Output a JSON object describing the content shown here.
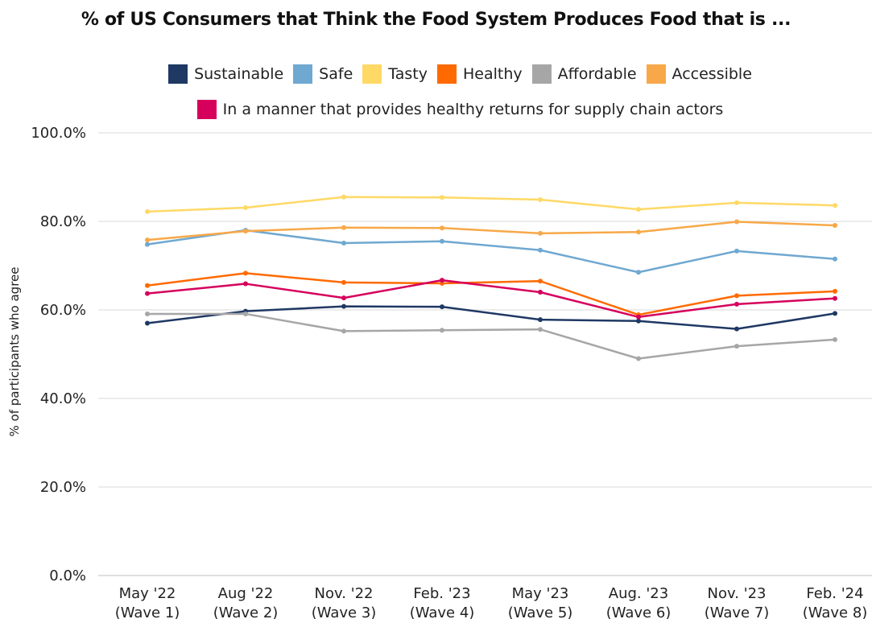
{
  "chart_data": {
    "type": "line",
    "title": "% of US Consumers that Think the Food System Produces Food that is ...",
    "ylabel": "% of participants who agree",
    "xlabel": "",
    "ylim": [
      0,
      100
    ],
    "yticks": [
      "0.0%",
      "20.0%",
      "40.0%",
      "60.0%",
      "80.0%",
      "100.0%"
    ],
    "categories": [
      [
        "May '22",
        "(Wave 1)"
      ],
      [
        "Aug '22",
        "(Wave 2)"
      ],
      [
        "Nov. '22",
        "(Wave 3)"
      ],
      [
        "Feb. '23",
        "(Wave 4)"
      ],
      [
        "May '23",
        "(Wave 5)"
      ],
      [
        "Aug. '23",
        "(Wave 6)"
      ],
      [
        "Nov. '23",
        "(Wave 7)"
      ],
      [
        "Feb. '24",
        "(Wave 8)"
      ]
    ],
    "grid": true,
    "legend_position": "top",
    "series": [
      {
        "name": "Sustainable",
        "color": "#1f3864",
        "values": [
          57.0,
          59.7,
          60.8,
          60.7,
          57.8,
          57.5,
          55.7,
          59.2
        ]
      },
      {
        "name": "Safe",
        "color": "#6fa8d0",
        "values": [
          74.8,
          78.0,
          75.1,
          75.5,
          73.5,
          68.5,
          73.3,
          71.5
        ]
      },
      {
        "name": "Tasty",
        "color": "#ffd966",
        "values": [
          82.2,
          83.1,
          85.5,
          85.4,
          84.9,
          82.7,
          84.2,
          83.6
        ]
      },
      {
        "name": "Healthy",
        "color": "#ff6a00",
        "values": [
          65.5,
          68.3,
          66.2,
          66.0,
          66.5,
          58.9,
          63.2,
          64.2
        ]
      },
      {
        "name": "Affordable",
        "color": "#a6a6a6",
        "values": [
          59.1,
          59.1,
          55.2,
          55.4,
          55.6,
          49.0,
          51.8,
          53.3
        ]
      },
      {
        "name": "Accessible",
        "color": "#f8a848",
        "values": [
          75.8,
          77.8,
          78.6,
          78.5,
          77.3,
          77.6,
          79.9,
          79.1
        ]
      },
      {
        "name": "In a manner that provides healthy returns for supply chain actors",
        "color": "#d6005c",
        "values": [
          63.7,
          65.9,
          62.7,
          66.7,
          64.0,
          58.4,
          61.3,
          62.6
        ]
      }
    ]
  }
}
